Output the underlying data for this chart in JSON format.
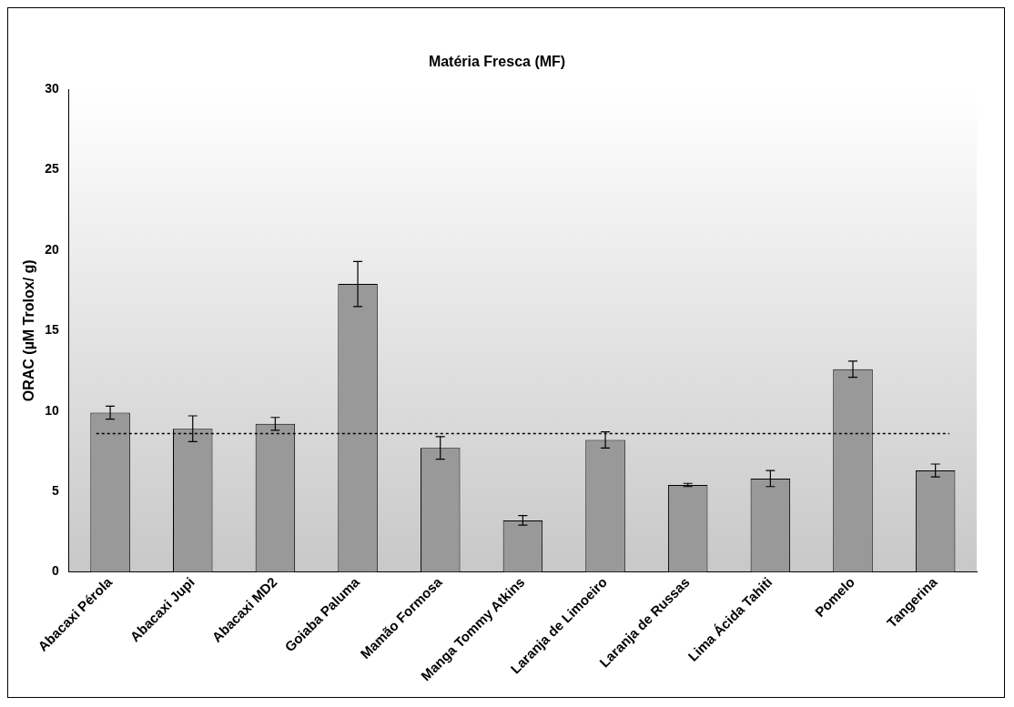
{
  "chart_data": {
    "type": "bar",
    "title": "Matéria Fresca (MF)",
    "ylabel": "ORAC (µM Trolox/ g)",
    "categories": [
      "Abacaxi Pérola",
      "Abacaxi Jupi",
      "Abacaxi MD2",
      "Goiaba Paluma",
      "Mamão Formosa",
      "Manga Tommy Atkins",
      "Laranja de Limoeiro",
      "Laranja de Russas",
      "Lima Ácida Tahiti",
      "Pomelo",
      "Tangerina"
    ],
    "values": [
      9.9,
      8.9,
      9.2,
      17.9,
      7.7,
      3.2,
      8.2,
      5.4,
      5.8,
      12.6,
      6.3
    ],
    "errors": [
      0.4,
      0.8,
      0.4,
      1.4,
      0.7,
      0.3,
      0.5,
      0.1,
      0.5,
      0.5,
      0.4
    ],
    "color": "#999999",
    "ylim": [
      0,
      30
    ],
    "yticks": [
      0,
      5,
      10,
      15,
      20,
      25,
      30
    ],
    "grid": false,
    "legend": false,
    "ref_lines": [
      {
        "axis": "y",
        "value": 8.6,
        "color": "#000000",
        "line_style": "dotted"
      }
    ]
  }
}
